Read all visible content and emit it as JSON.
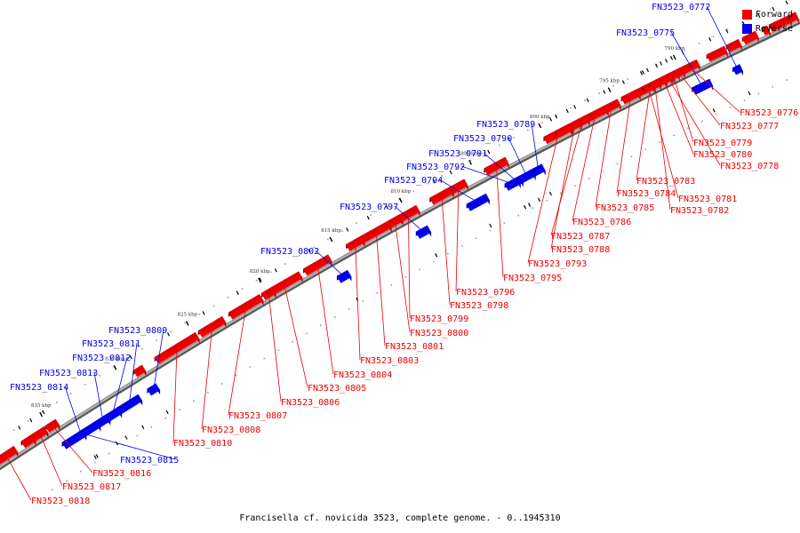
{
  "caption": "Francisella cf. novicida 3523, complete genome. - 0..1945310",
  "legend": [
    {
      "label": "Forward",
      "color": "#ee0000"
    },
    {
      "label": "Reverse",
      "color": "#0000ee"
    }
  ],
  "colors": {
    "forward": "#ee0000",
    "reverse": "#0000ee",
    "backbone": "#8a8a8a"
  },
  "scale_ticks": [
    "790 kbp",
    "795 kbp",
    "800 kbp",
    "805 kbp",
    "810 kbp",
    "815 kbp",
    "820 kbp",
    "825 kbp",
    "830 kbp",
    "835 kbp"
  ],
  "genes": [
    {
      "name": "FN3523_0772",
      "strand": "reverse"
    },
    {
      "name": "FN3523_0775",
      "strand": "reverse"
    },
    {
      "name": "FN3523_0776",
      "strand": "forward"
    },
    {
      "name": "FN3523_0777",
      "strand": "forward"
    },
    {
      "name": "FN3523_0779",
      "strand": "forward"
    },
    {
      "name": "FN3523_0780",
      "strand": "forward"
    },
    {
      "name": "FN3523_0778",
      "strand": "forward"
    },
    {
      "name": "FN3523_0783",
      "strand": "forward"
    },
    {
      "name": "FN3523_0784",
      "strand": "forward"
    },
    {
      "name": "FN3523_0781",
      "strand": "forward"
    },
    {
      "name": "FN3523_0785",
      "strand": "forward"
    },
    {
      "name": "FN3523_0782",
      "strand": "forward"
    },
    {
      "name": "FN3523_0786",
      "strand": "forward"
    },
    {
      "name": "FN3523_0787",
      "strand": "forward"
    },
    {
      "name": "FN3523_0788",
      "strand": "forward"
    },
    {
      "name": "FN3523_0789",
      "strand": "reverse"
    },
    {
      "name": "FN3523_0790",
      "strand": "reverse"
    },
    {
      "name": "FN3523_0791",
      "strand": "reverse"
    },
    {
      "name": "FN3523_0792",
      "strand": "reverse"
    },
    {
      "name": "FN3523_0793",
      "strand": "forward"
    },
    {
      "name": "FN3523_0794",
      "strand": "reverse"
    },
    {
      "name": "FN3523_0795",
      "strand": "forward"
    },
    {
      "name": "FN3523_0796",
      "strand": "forward"
    },
    {
      "name": "FN3523_0797",
      "strand": "reverse"
    },
    {
      "name": "FN3523_0798",
      "strand": "forward"
    },
    {
      "name": "FN3523_0799",
      "strand": "forward"
    },
    {
      "name": "FN3523_0800",
      "strand": "forward"
    },
    {
      "name": "FN3523_0801",
      "strand": "forward"
    },
    {
      "name": "FN3523_0802",
      "strand": "reverse"
    },
    {
      "name": "FN3523_0803",
      "strand": "forward"
    },
    {
      "name": "FN3523_0804",
      "strand": "forward"
    },
    {
      "name": "FN3523_0805",
      "strand": "forward"
    },
    {
      "name": "FN3523_0806",
      "strand": "forward"
    },
    {
      "name": "FN3523_0807",
      "strand": "forward"
    },
    {
      "name": "FN3523_0808",
      "strand": "forward"
    },
    {
      "name": "FN3523_0809",
      "strand": "reverse"
    },
    {
      "name": "FN3523_0810",
      "strand": "forward"
    },
    {
      "name": "FN3523_0811",
      "strand": "reverse"
    },
    {
      "name": "FN3523_0812",
      "strand": "reverse"
    },
    {
      "name": "FN3523_0813",
      "strand": "reverse"
    },
    {
      "name": "FN3523_0814",
      "strand": "reverse"
    },
    {
      "name": "FN3523_0815",
      "strand": "reverse"
    },
    {
      "name": "FN3523_0816",
      "strand": "forward"
    },
    {
      "name": "FN3523_0817",
      "strand": "forward"
    },
    {
      "name": "FN3523_0818",
      "strand": "forward"
    }
  ]
}
